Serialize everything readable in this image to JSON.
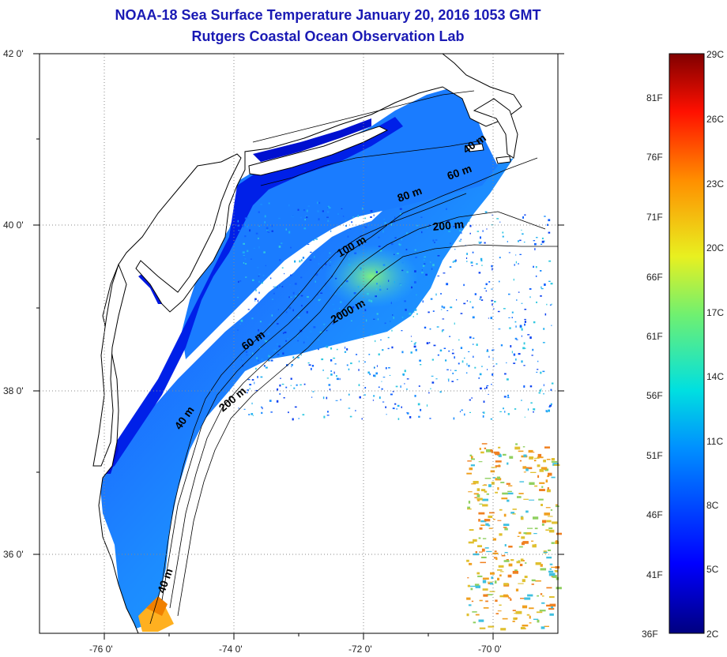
{
  "title": "NOAA-18 Sea Surface Temperature January 20, 2016 1053 GMT",
  "subtitle": "Rutgers Coastal Ocean Observation Lab",
  "lat_labels": [
    "42 0'",
    "40 0'",
    "38 0'",
    "36 0'"
  ],
  "lon_labels": [
    "-76 0'",
    "-74 0'",
    "-72 0'",
    "-70 0'"
  ],
  "isobaths": [
    "40 m",
    "60 m",
    "80 m",
    "200 m",
    "100 m",
    "2000 m",
    "60 m",
    "200 m",
    "40 m",
    "40 m"
  ],
  "colorbar": {
    "celsius": [
      "29C",
      "26C",
      "23C",
      "20C",
      "17C",
      "14C",
      "11C",
      "8C",
      "5C",
      "2C"
    ],
    "fahrenheit": [
      "81F",
      "76F",
      "71F",
      "66F",
      "61F",
      "56F",
      "51F",
      "46F",
      "41F",
      "36F"
    ]
  },
  "colors": {
    "title": "#1a1ab4",
    "land": "#ffffff",
    "ocean_cold": "#0018e0",
    "ocean_mid": "#1aa0ff",
    "ocean_warm": "#40e0d0"
  }
}
